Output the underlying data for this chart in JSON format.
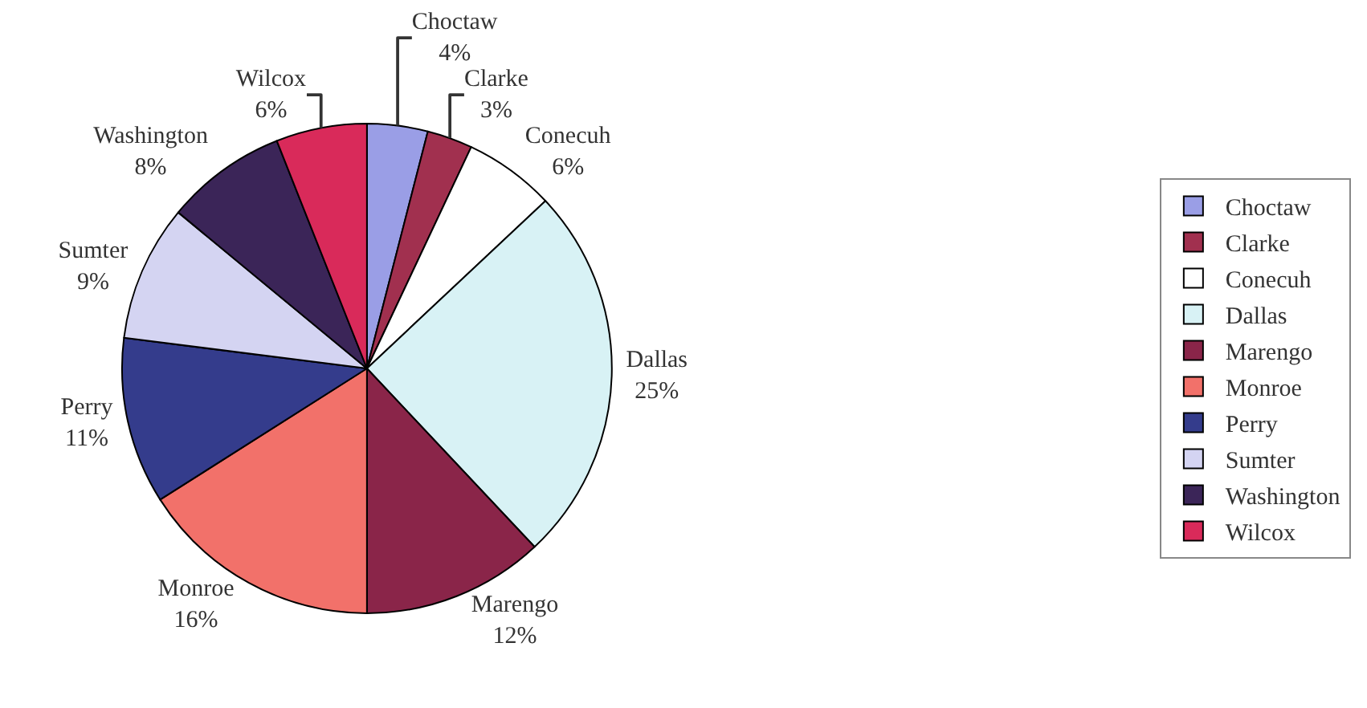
{
  "chart_data": {
    "type": "pie",
    "categories": [
      "Choctaw",
      "Clarke",
      "Conecuh",
      "Dallas",
      "Marengo",
      "Monroe",
      "Perry",
      "Sumter",
      "Washington",
      "Wilcox"
    ],
    "values": [
      4,
      3,
      6,
      25,
      12,
      16,
      11,
      9,
      8,
      6
    ],
    "colors": [
      "#9a9ee6",
      "#a1304f",
      "#ffffff",
      "#d8f2f5",
      "#8a2549",
      "#f2716a",
      "#343c8c",
      "#d4d4f2",
      "#3b2558",
      "#d92a5a"
    ],
    "value_labels": [
      "4%",
      "3%",
      "6%",
      "25%",
      "12%",
      "16%",
      "11%",
      "9%",
      "8%",
      "6%"
    ],
    "legend": "right"
  }
}
